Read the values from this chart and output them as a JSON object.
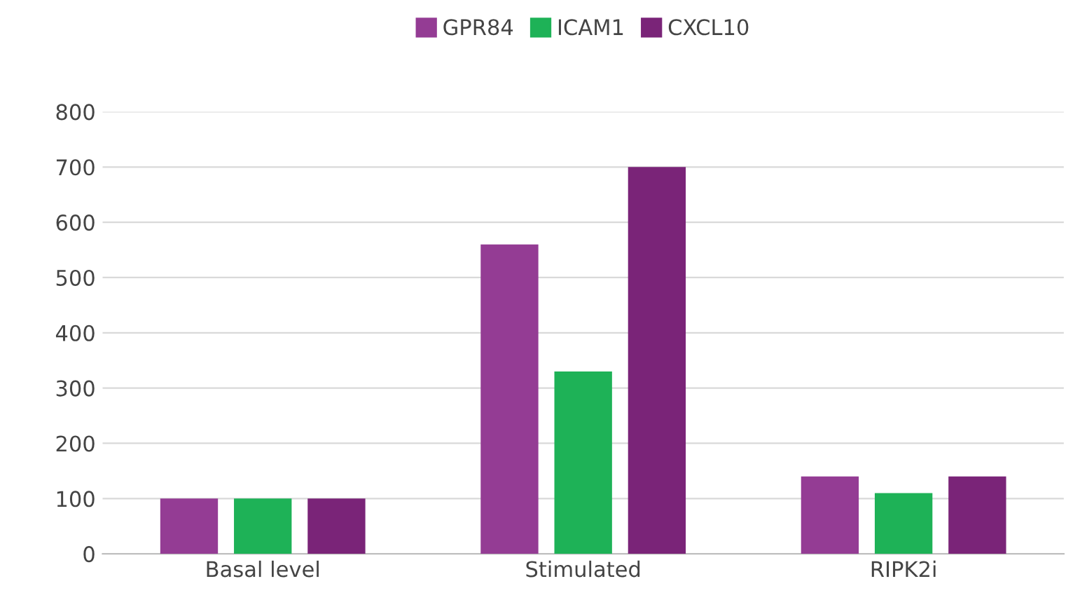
{
  "chart_data": {
    "type": "bar",
    "categories": [
      "Basal level",
      "Stimulated",
      "RIPK2i"
    ],
    "series": [
      {
        "name": "GPR84",
        "color": "#943c94",
        "values": [
          100,
          560,
          140
        ]
      },
      {
        "name": "ICAM1",
        "color": "#1eb257",
        "values": [
          100,
          330,
          110
        ]
      },
      {
        "name": "CXCL10",
        "color": "#7a2478",
        "values": [
          100,
          700,
          140
        ]
      }
    ],
    "ylim": [
      0,
      800
    ],
    "yticks": [
      0,
      100,
      200,
      300,
      400,
      500,
      600,
      700,
      800
    ],
    "grid": "y",
    "legend": "top"
  }
}
